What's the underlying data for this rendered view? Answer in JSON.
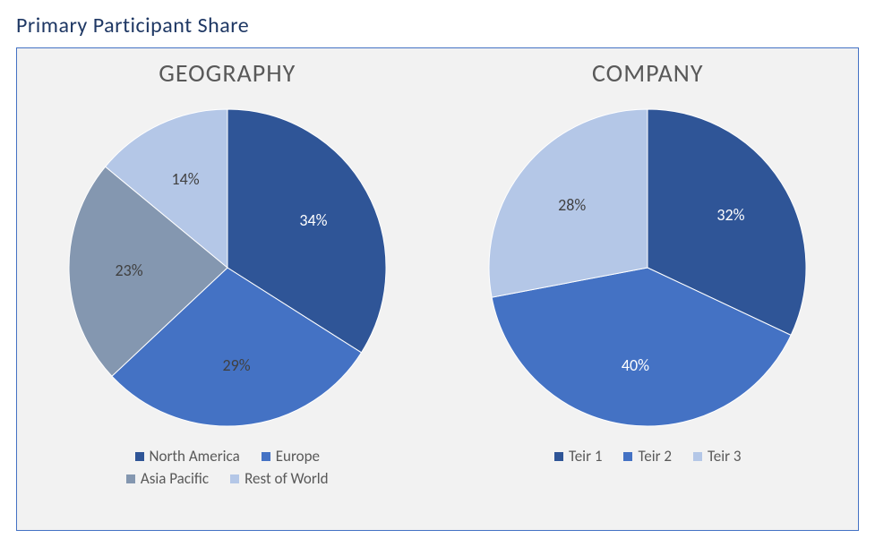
{
  "page": {
    "title": "Primary Participant Share",
    "title_color": "#1f3864",
    "title_fontsize": 24,
    "background": "#ffffff",
    "box_background": "#f2f2f2",
    "box_border_color": "#4472c4"
  },
  "charts": [
    {
      "key": "geography",
      "title": "GEOGRAPHY",
      "title_color": "#595959",
      "title_fontsize": 28,
      "type": "pie",
      "diameter": 354,
      "start_angle_deg": -90,
      "legend_rows": 2,
      "slices": [
        {
          "label": "North America",
          "value": 34,
          "display": "34%",
          "color": "#2f5597",
          "text_color": "#ffffff"
        },
        {
          "label": "Europe",
          "value": 29,
          "display": "29%",
          "color": "#4472c4",
          "text_color": "#404040"
        },
        {
          "label": "Asia Pacific",
          "value": 23,
          "display": "23%",
          "color": "#8497b0",
          "text_color": "#404040"
        },
        {
          "label": "Rest of World",
          "value": 14,
          "display": "14%",
          "color": "#b4c7e7",
          "text_color": "#404040"
        }
      ]
    },
    {
      "key": "company",
      "title": "COMPANY",
      "title_color": "#595959",
      "title_fontsize": 28,
      "type": "pie",
      "diameter": 354,
      "start_angle_deg": -90,
      "legend_rows": 1,
      "slices": [
        {
          "label": "Teir 1",
          "value": 32,
          "display": "32%",
          "color": "#2f5597",
          "text_color": "#ffffff"
        },
        {
          "label": "Teir 2",
          "value": 40,
          "display": "40%",
          "color": "#4472c4",
          "text_color": "#ffffff"
        },
        {
          "label": "Teir 3",
          "value": 28,
          "display": "28%",
          "color": "#b4c7e7",
          "text_color": "#404040"
        }
      ]
    }
  ]
}
